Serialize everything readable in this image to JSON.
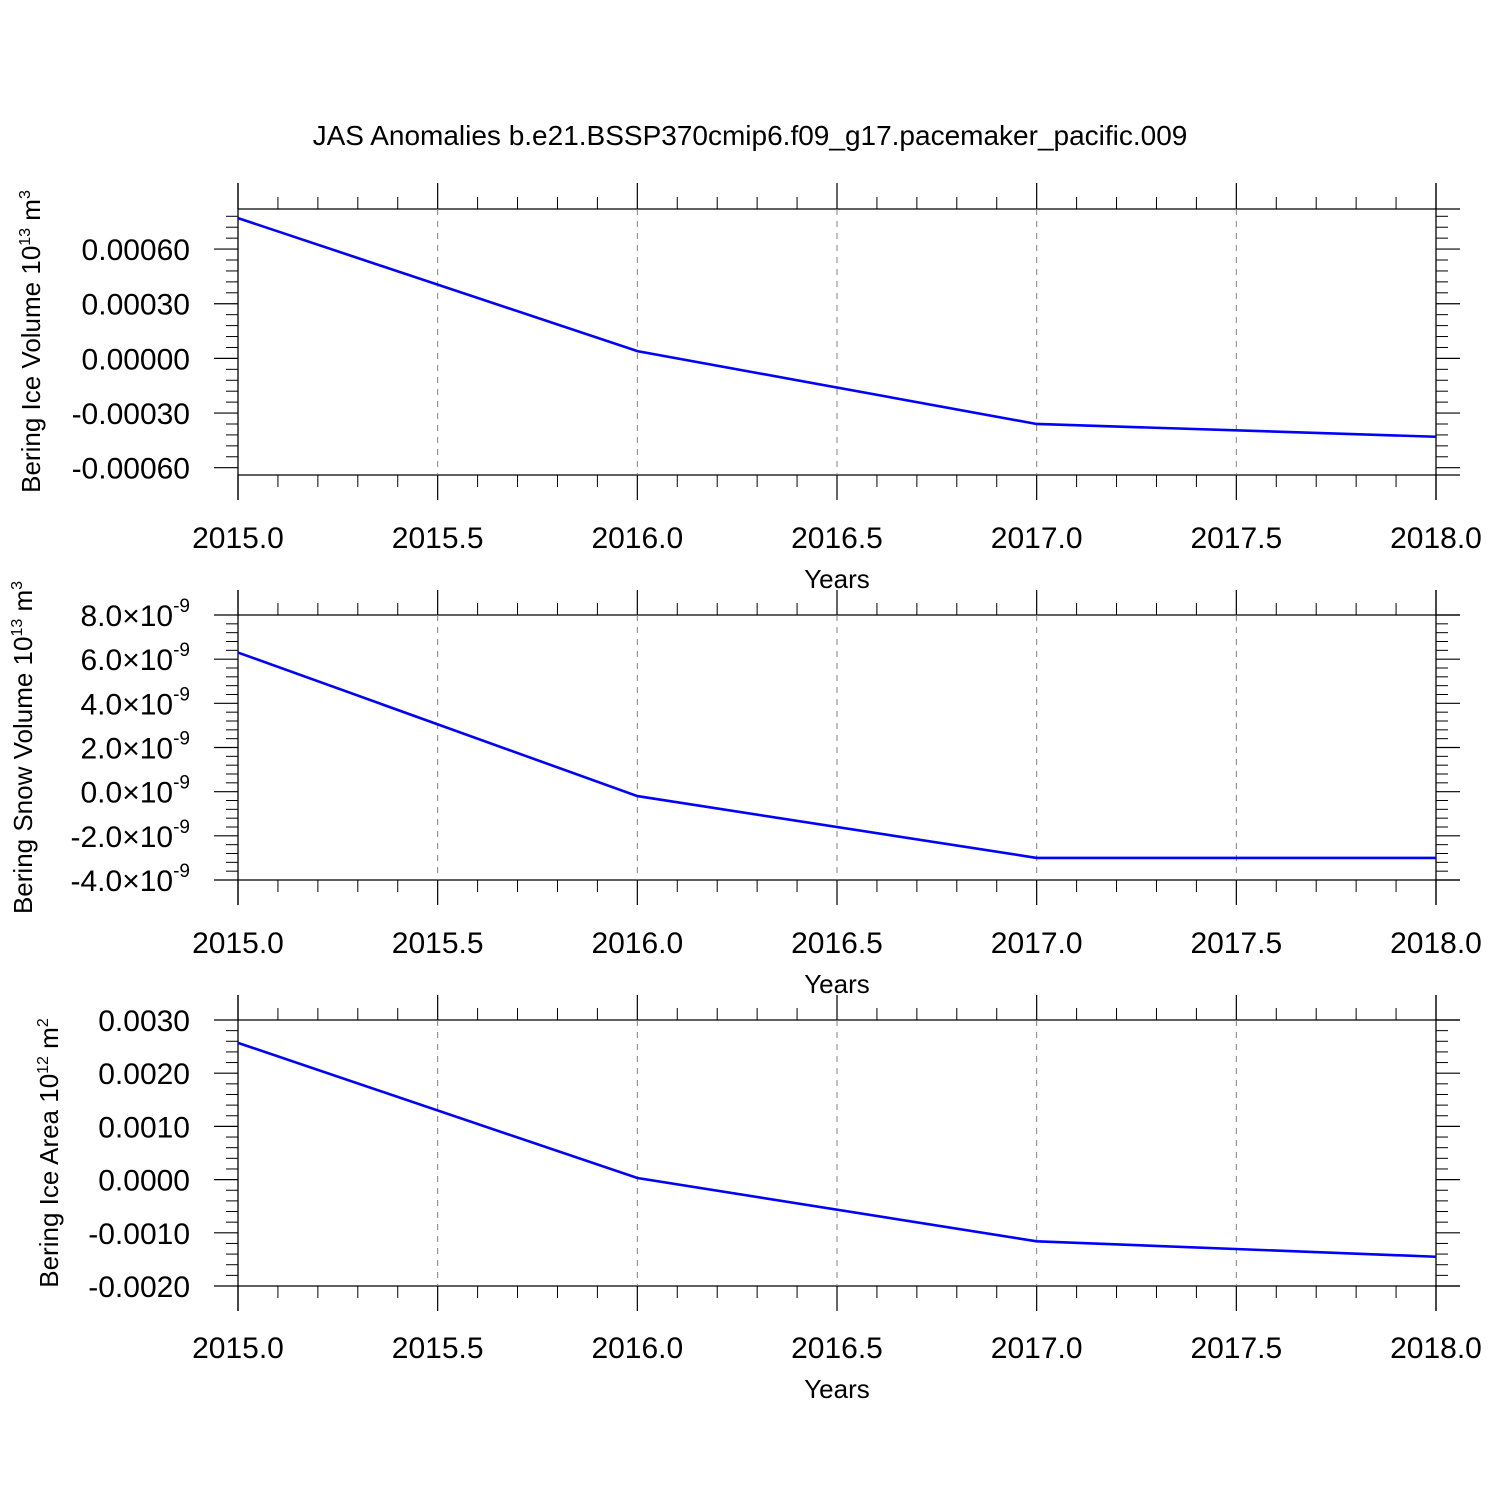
{
  "title": "JAS Anomalies b.e21.BSSP370cmip6.f09_g17.pacemaker_pacific.009",
  "colors": {
    "line": "#0000ff",
    "axis": "#000000",
    "grid": "#808080"
  },
  "chart_data": [
    {
      "type": "line",
      "xlabel": "Years",
      "ylabel": {
        "text": "Bering Ice Volume 10",
        "sup": "13",
        "unit": " m",
        "unit_sup": "3"
      },
      "xlim": [
        2015.0,
        2018.0
      ],
      "ylim": [
        -0.00064,
        0.00082
      ],
      "xticks": [
        2015.0,
        2015.5,
        2016.0,
        2016.5,
        2017.0,
        2017.5,
        2018.0
      ],
      "xtick_labels": [
        "2015.0",
        "2015.5",
        "2016.0",
        "2016.5",
        "2017.0",
        "2017.5",
        "2018.0"
      ],
      "yticks": [
        0.0006,
        0.0003,
        0.0,
        -0.0003,
        -0.0006
      ],
      "ytick_labels": [
        {
          "text": "0.00060"
        },
        {
          "text": "0.00030"
        },
        {
          "text": "0.00000"
        },
        {
          "text": "-0.00030"
        },
        {
          "text": "-0.00060"
        }
      ],
      "grid": "vertical dashed",
      "x": [
        2015,
        2016,
        2017,
        2018
      ],
      "values": [
        0.00077,
        4e-05,
        -0.00036,
        -0.00043
      ]
    },
    {
      "type": "line",
      "xlabel": "Years",
      "ylabel": {
        "text": "Bering Snow Volume 10",
        "sup": "13",
        "unit": " m",
        "unit_sup": "3"
      },
      "xlim": [
        2015.0,
        2018.0
      ],
      "ylim": [
        -4e-09,
        8e-09
      ],
      "xticks": [
        2015.0,
        2015.5,
        2016.0,
        2016.5,
        2017.0,
        2017.5,
        2018.0
      ],
      "xtick_labels": [
        "2015.0",
        "2015.5",
        "2016.0",
        "2016.5",
        "2017.0",
        "2017.5",
        "2018.0"
      ],
      "yticks": [
        8e-09,
        6e-09,
        4e-09,
        2e-09,
        0.0,
        -2e-09,
        -4e-09
      ],
      "ytick_labels": [
        {
          "text": "8.0×10",
          "sup": "-9"
        },
        {
          "text": "6.0×10",
          "sup": "-9"
        },
        {
          "text": "4.0×10",
          "sup": "-9"
        },
        {
          "text": "2.0×10",
          "sup": "-9"
        },
        {
          "text": "0.0×10",
          "sup": "-9"
        },
        {
          "text": "-2.0×10",
          "sup": "-9"
        },
        {
          "text": "-4.0×10",
          "sup": "-9"
        }
      ],
      "grid": "vertical dashed",
      "x": [
        2015,
        2016,
        2017,
        2018
      ],
      "values": [
        6.3e-09,
        -2e-10,
        -3e-09,
        -3e-09
      ]
    },
    {
      "type": "line",
      "xlabel": "Years",
      "ylabel": {
        "text": "Bering Ice Area 10",
        "sup": "12",
        "unit": " m",
        "unit_sup": "2"
      },
      "xlim": [
        2015.0,
        2018.0
      ],
      "ylim": [
        -0.002,
        0.003
      ],
      "xticks": [
        2015.0,
        2015.5,
        2016.0,
        2016.5,
        2017.0,
        2017.5,
        2018.0
      ],
      "xtick_labels": [
        "2015.0",
        "2015.5",
        "2016.0",
        "2016.5",
        "2017.0",
        "2017.5",
        "2018.0"
      ],
      "yticks": [
        0.003,
        0.002,
        0.001,
        0.0,
        -0.001,
        -0.002
      ],
      "ytick_labels": [
        {
          "text": "0.0030"
        },
        {
          "text": "0.0020"
        },
        {
          "text": "0.0010"
        },
        {
          "text": "0.0000"
        },
        {
          "text": "-0.0010"
        },
        {
          "text": "-0.0020"
        }
      ],
      "grid": "vertical dashed",
      "x": [
        2015,
        2016,
        2017,
        2018
      ],
      "values": [
        0.00257,
        3e-05,
        -0.00116,
        -0.00145
      ]
    }
  ]
}
